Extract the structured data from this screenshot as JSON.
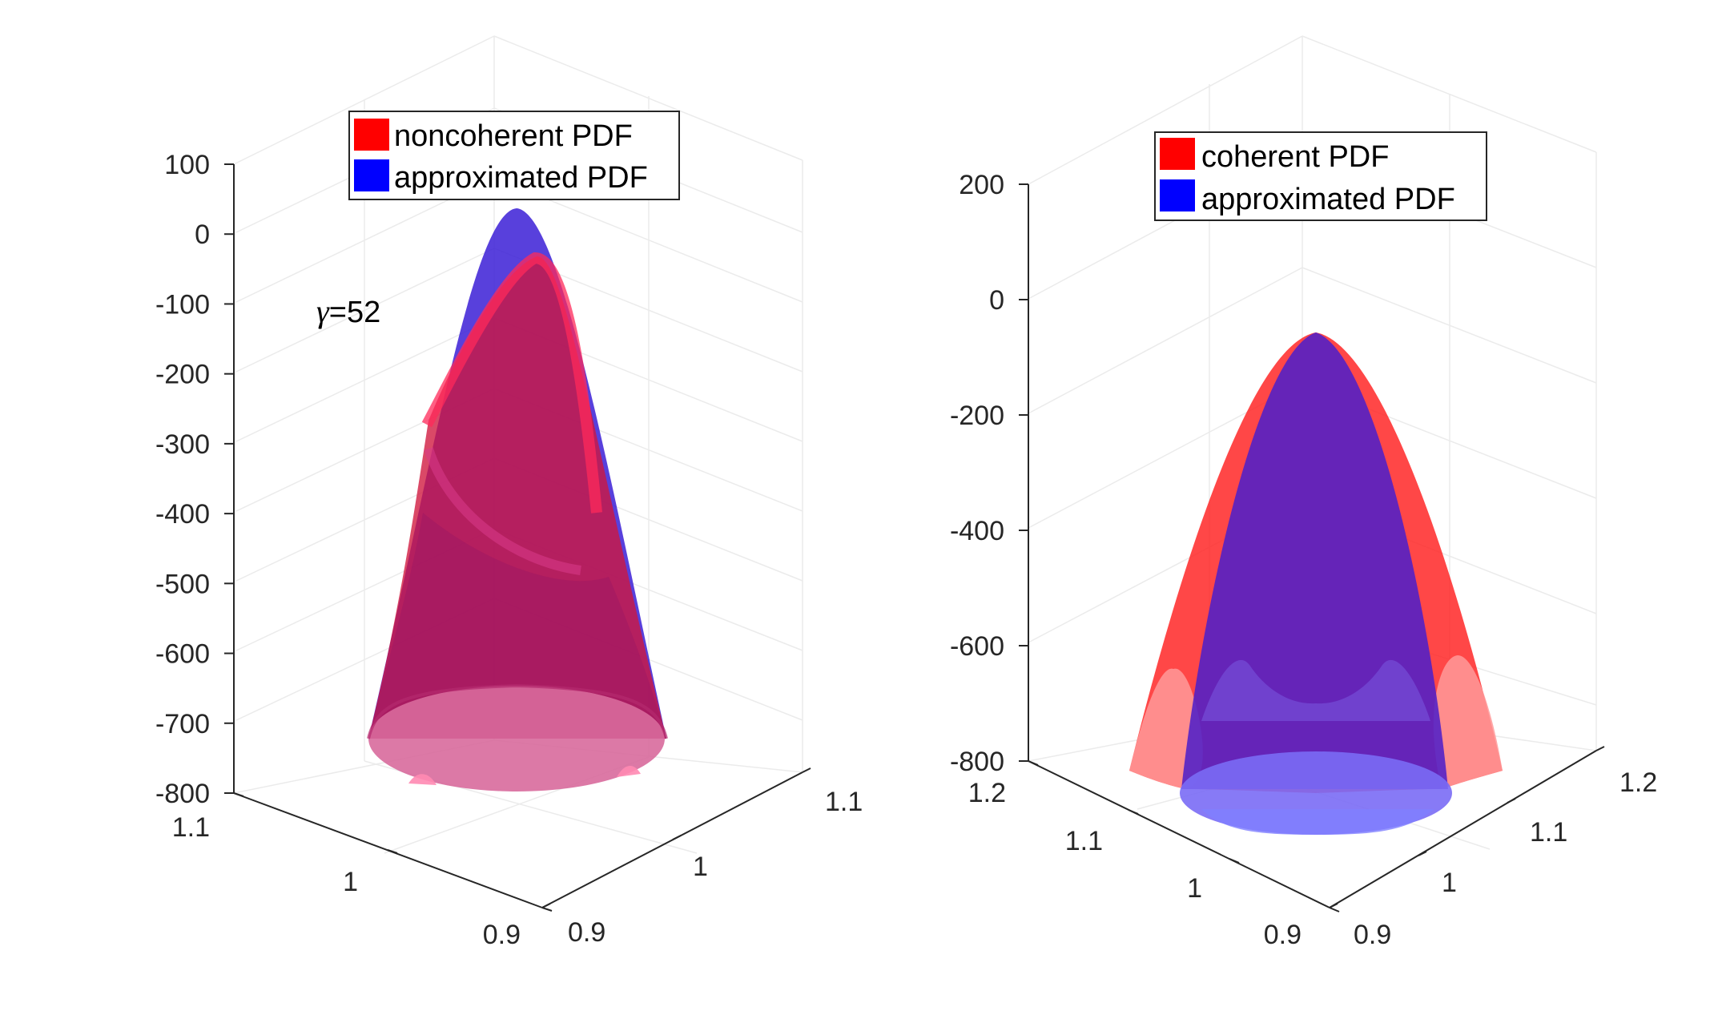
{
  "figure": {
    "background": "#ffffff"
  },
  "chart_data": [
    {
      "type": "surface3d",
      "z_ticks": [
        "100",
        "0",
        "-100",
        "-200",
        "-300",
        "-400",
        "-500",
        "-600",
        "-700",
        "-800"
      ],
      "zlim": [
        -800,
        100
      ],
      "x_ticks": [
        "1.1",
        "1",
        "0.9"
      ],
      "xlim": [
        0.9,
        1.1
      ],
      "y_ticks": [
        "0.9",
        "1",
        "1.1"
      ],
      "ylim": [
        0.9,
        1.1
      ],
      "series": [
        {
          "name": "noncoherent PDF",
          "color": "#ff0000",
          "peak_z": -30
        },
        {
          "name": "approximated PDF",
          "color": "#0000ff",
          "peak_z": 20
        }
      ],
      "legend": {
        "position": "top",
        "items": [
          "noncoherent PDF",
          "approximated PDF"
        ]
      },
      "annotation": {
        "symbol": "γ",
        "text": "=52"
      }
    },
    {
      "type": "surface3d",
      "z_ticks": [
        "200",
        "0",
        "-200",
        "-400",
        "-600",
        "-800"
      ],
      "zlim": [
        -800,
        200
      ],
      "x_ticks": [
        "1.2",
        "1.1",
        "1",
        "0.9"
      ],
      "xlim": [
        0.9,
        1.2
      ],
      "y_ticks": [
        "0.9",
        "1",
        "1.1",
        "1.2"
      ],
      "ylim": [
        0.9,
        1.2
      ],
      "series": [
        {
          "name": "coherent PDF",
          "color": "#ff0000",
          "peak_z": -70
        },
        {
          "name": "approximated PDF",
          "color": "#0000ff",
          "peak_z": -70
        }
      ],
      "legend": {
        "position": "top",
        "items": [
          "coherent PDF",
          "approximated PDF"
        ]
      }
    }
  ]
}
